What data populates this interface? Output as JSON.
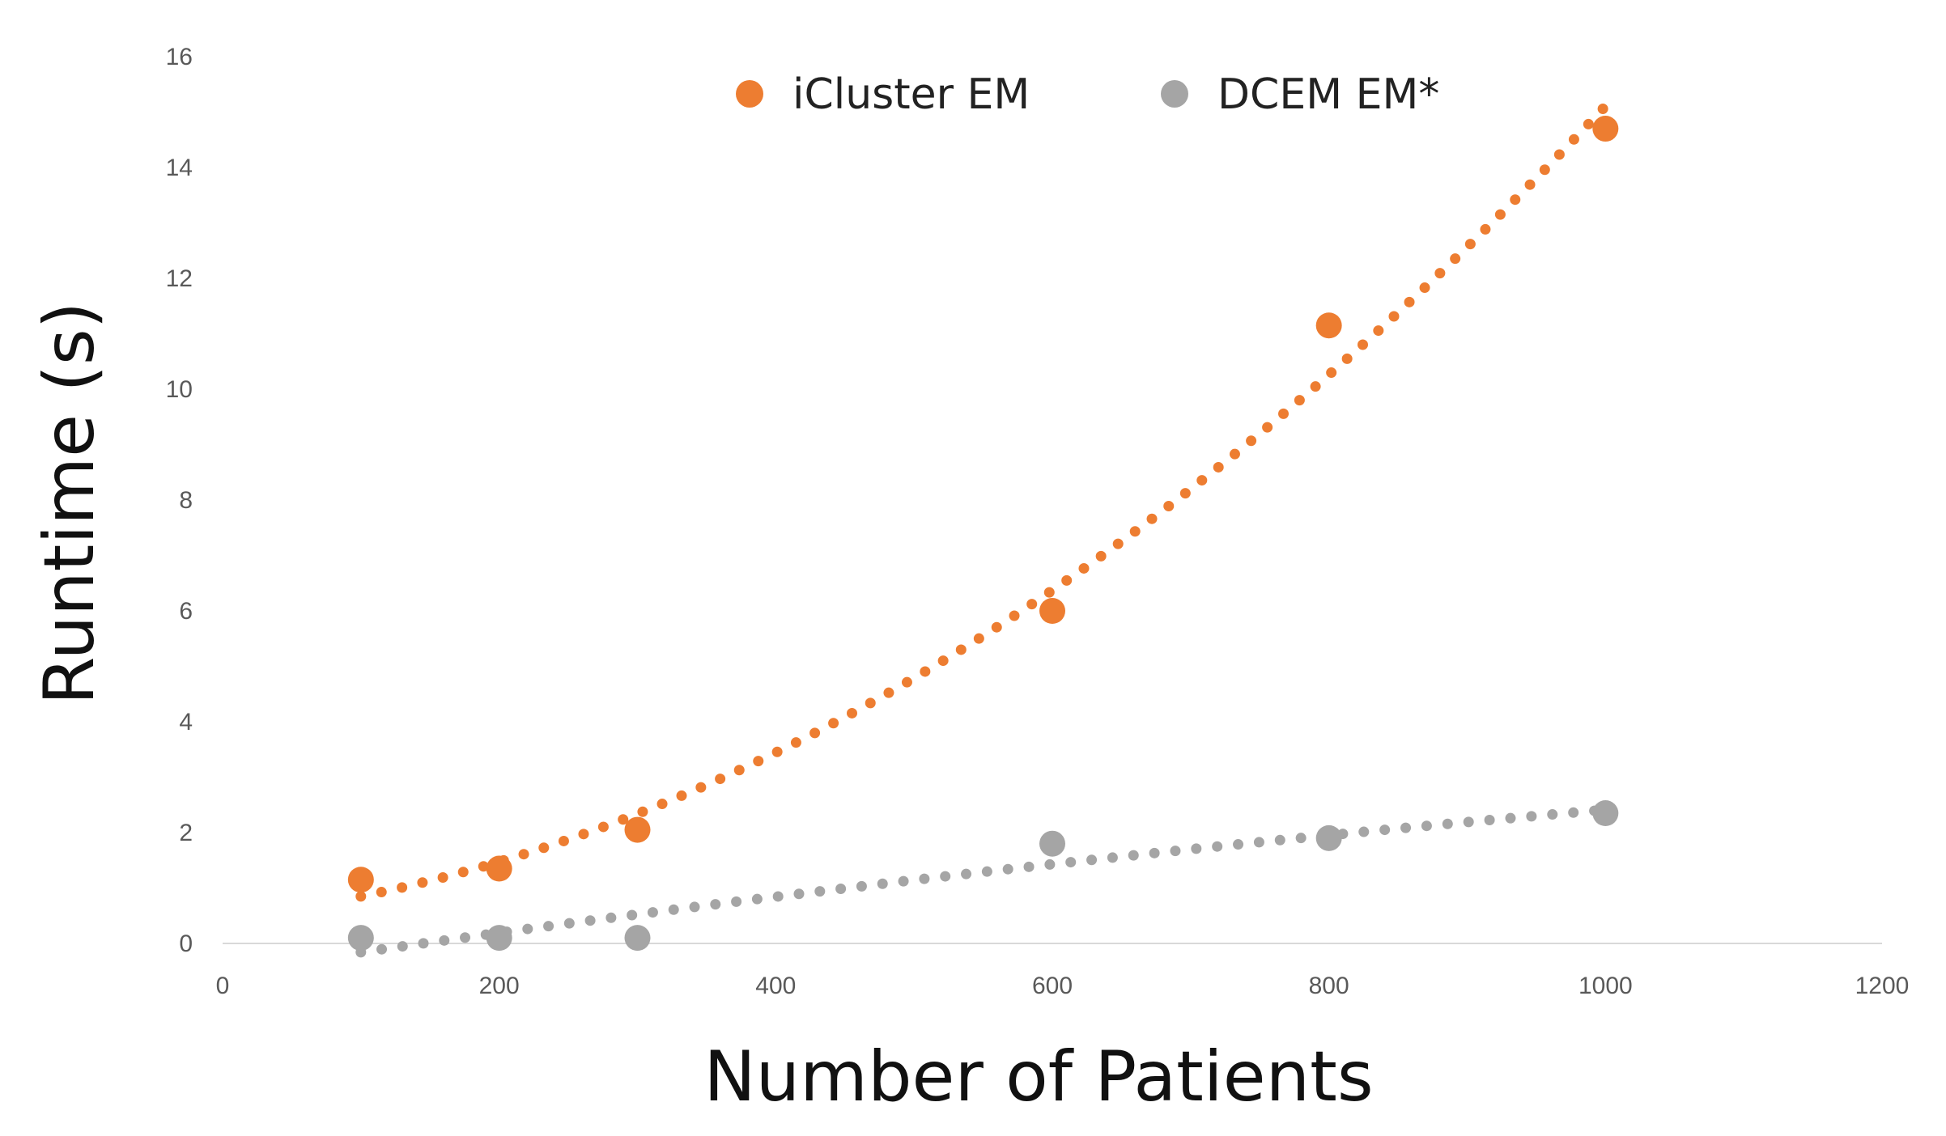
{
  "chart_data": {
    "type": "scatter",
    "xlabel": "Number of Patients",
    "ylabel": "Runtime (s)",
    "xlim": [
      0,
      1200
    ],
    "ylim": [
      0,
      16
    ],
    "xticks": [
      0,
      200,
      400,
      600,
      800,
      1000,
      1200
    ],
    "yticks": [
      0,
      2,
      4,
      6,
      8,
      10,
      12,
      14,
      16
    ],
    "grid": false,
    "legend_position": "top-center",
    "series": [
      {
        "name": "iCluster EM",
        "color": "#ED7D31",
        "trendline": "polynomial (dotted)",
        "points": [
          {
            "x": 100,
            "y": 1.15
          },
          {
            "x": 200,
            "y": 1.35
          },
          {
            "x": 300,
            "y": 2.05
          },
          {
            "x": 600,
            "y": 6.0
          },
          {
            "x": 800,
            "y": 11.15
          },
          {
            "x": 1000,
            "y": 14.7
          }
        ]
      },
      {
        "name": "DCEM EM*",
        "color": "#A5A5A5",
        "trendline": "polynomial (dotted)",
        "points": [
          {
            "x": 100,
            "y": 0.1
          },
          {
            "x": 200,
            "y": 0.1
          },
          {
            "x": 300,
            "y": 0.1
          },
          {
            "x": 600,
            "y": 1.8
          },
          {
            "x": 800,
            "y": 1.9
          },
          {
            "x": 1000,
            "y": 2.35
          }
        ]
      }
    ]
  }
}
